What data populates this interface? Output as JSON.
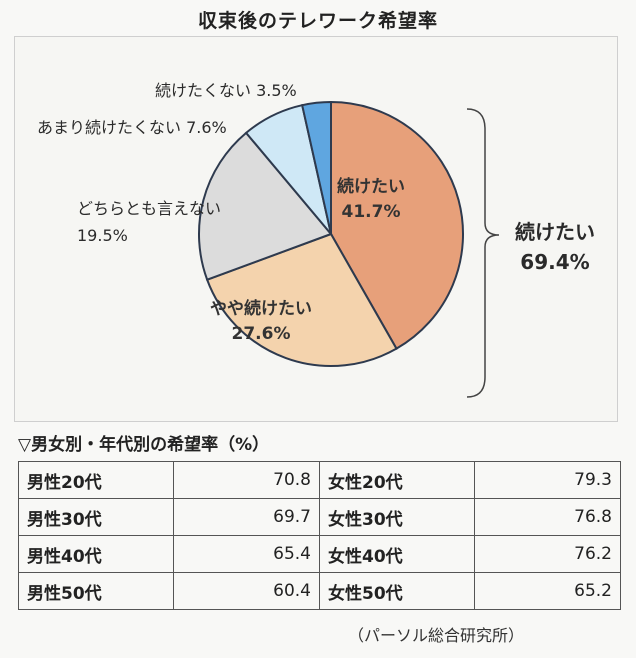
{
  "title": "収束後のテレワーク希望率",
  "chart_data": {
    "type": "pie",
    "slices": [
      {
        "label": "続けたい",
        "value": 41.7,
        "display": "41.7%",
        "color": "#e7a07a"
      },
      {
        "label": "やや続けたい",
        "value": 27.6,
        "display": "27.6%",
        "color": "#f4d3ad"
      },
      {
        "label": "どちらとも言えない",
        "value": 19.5,
        "display": "19.5%",
        "color": "#dcdcdc"
      },
      {
        "label": "あまり続けたくない",
        "value": 7.6,
        "display": "7.6%",
        "color": "#cfe8f6"
      },
      {
        "label": "続けたくない",
        "value": 3.5,
        "display": "3.5%",
        "color": "#5fa6e0"
      }
    ],
    "bracket": {
      "label": "続けたい",
      "value": "69.4%"
    }
  },
  "table": {
    "heading": "▽男女別・年代別の希望率（%）",
    "rows": [
      {
        "male_label": "男性20代",
        "male_value": "70.8",
        "female_label": "女性20代",
        "female_value": "79.3"
      },
      {
        "male_label": "男性30代",
        "male_value": "69.7",
        "female_label": "女性30代",
        "female_value": "76.8"
      },
      {
        "male_label": "男性40代",
        "male_value": "65.4",
        "female_label": "女性40代",
        "female_value": "76.2"
      },
      {
        "male_label": "男性50代",
        "male_value": "60.4",
        "female_label": "女性50代",
        "female_value": "65.2"
      }
    ]
  },
  "source": "（パーソル総合研究所）"
}
